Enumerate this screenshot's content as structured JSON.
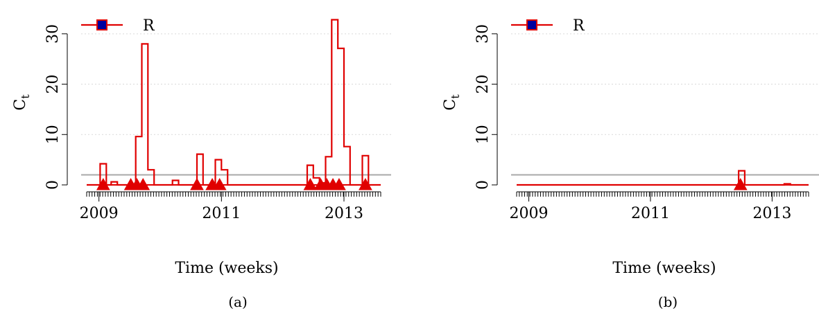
{
  "chart_data": [
    {
      "type": "line",
      "caption": "(a)",
      "xlabel": "Time (weeks)",
      "ylabel_main": "C",
      "ylabel_sub": "t",
      "x_tick_labels": [
        "2009",
        "2011",
        "2013"
      ],
      "y_tick_labels": [
        "0",
        "10",
        "20",
        "30"
      ],
      "ylim": [
        0,
        33
      ],
      "threshold": 2,
      "grid": true,
      "legend": {
        "position": "top-left",
        "entries": [
          "R"
        ]
      },
      "colors": {
        "series": "#e00000",
        "threshold": "#a8a8a8",
        "marker": "#e00000",
        "legend_fill": "#00009e",
        "grid": "#d9d9d9"
      },
      "series": [
        {
          "name": "R",
          "step_x": [
            2008.8,
            2009.02,
            2009.02,
            2009.12,
            2009.12,
            2009.2,
            2009.2,
            2009.3,
            2009.3,
            2009.6,
            2009.6,
            2009.7,
            2009.7,
            2009.8,
            2009.8,
            2009.9,
            2009.9,
            2010.2,
            2010.2,
            2010.3,
            2010.3,
            2010.6,
            2010.6,
            2010.7,
            2010.7,
            2010.9,
            2010.9,
            2011.0,
            2011.0,
            2011.1,
            2011.1,
            2012.4,
            2012.4,
            2012.5,
            2012.5,
            2012.6,
            2012.6,
            2012.7,
            2012.7,
            2012.8,
            2012.8,
            2012.9,
            2012.9,
            2013.0,
            2013.0,
            2013.1,
            2013.1,
            2013.3,
            2013.3,
            2013.4,
            2013.4,
            2013.6
          ],
          "step_y": [
            0,
            0,
            4.2,
            4.2,
            0,
            0,
            0.6,
            0.6,
            0,
            0,
            9.6,
            9.6,
            28,
            28,
            3.0,
            3.0,
            0,
            0,
            0.9,
            0.9,
            0,
            0,
            6.1,
            6.1,
            0,
            0,
            5.0,
            5.0,
            3.0,
            3.0,
            0,
            0,
            3.9,
            3.9,
            1.4,
            1.4,
            0.4,
            0.4,
            5.6,
            5.6,
            32.8,
            32.8,
            27.1,
            27.1,
            7.6,
            7.6,
            0,
            0,
            5.8,
            5.8,
            0,
            0
          ],
          "alarms_x": [
            2009.07,
            2009.52,
            2009.62,
            2009.72,
            2010.6,
            2010.85,
            2010.97,
            2012.45,
            2012.62,
            2012.72,
            2012.82,
            2012.92,
            2013.35
          ]
        }
      ]
    },
    {
      "type": "line",
      "caption": "(b)",
      "xlabel": "Time (weeks)",
      "ylabel_main": "C",
      "ylabel_sub": "t",
      "x_tick_labels": [
        "2009",
        "2011",
        "2013"
      ],
      "y_tick_labels": [
        "0",
        "10",
        "20",
        "30"
      ],
      "ylim": [
        0,
        33
      ],
      "threshold": 2,
      "grid": true,
      "legend": {
        "position": "top-left",
        "entries": [
          "R"
        ]
      },
      "colors": {
        "series": "#e00000",
        "threshold": "#a8a8a8",
        "marker": "#e00000",
        "legend_fill": "#00009e",
        "grid": "#d9d9d9"
      },
      "series": [
        {
          "name": "R",
          "step_x": [
            2008.8,
            2012.45,
            2012.45,
            2012.55,
            2012.55,
            2013.2,
            2013.2,
            2013.3,
            2013.3,
            2013.6
          ],
          "step_y": [
            0,
            0,
            2.8,
            2.8,
            0,
            0,
            0.2,
            0.2,
            0,
            0
          ],
          "alarms_x": [
            2012.48
          ]
        }
      ]
    }
  ]
}
